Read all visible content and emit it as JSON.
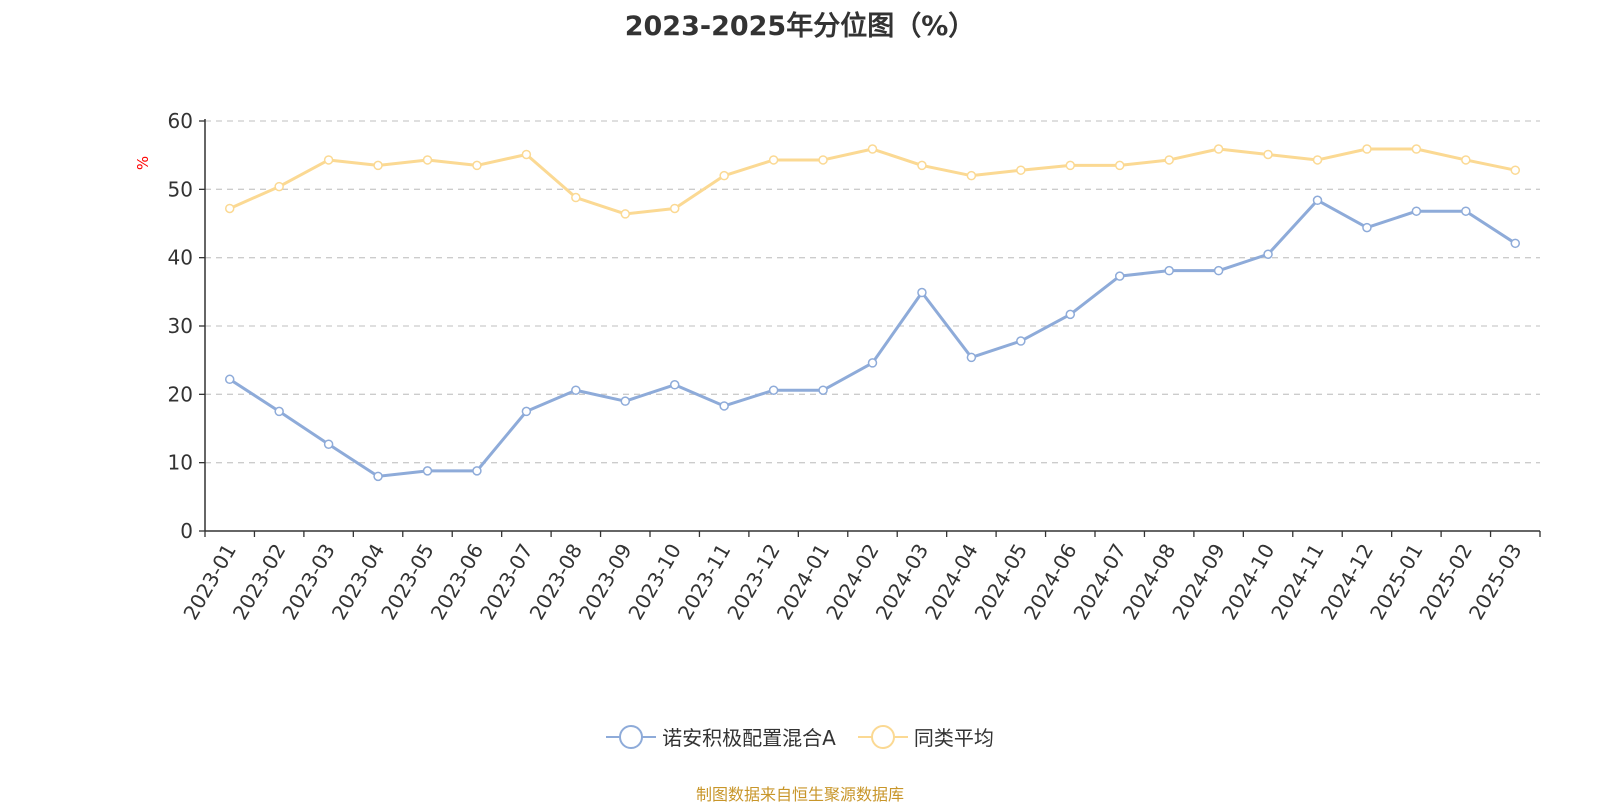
{
  "chart_data": {
    "type": "line",
    "title": "2023-2025年分位图（%）",
    "ylabel": "%",
    "ylim": [
      0,
      60
    ],
    "yticks": [
      0,
      10,
      20,
      30,
      40,
      50,
      60
    ],
    "grid": true,
    "legend_position": "bottom-center",
    "categories": [
      "2023-01",
      "2023-02",
      "2023-03",
      "2023-04",
      "2023-05",
      "2023-06",
      "2023-07",
      "2023-08",
      "2023-09",
      "2023-10",
      "2023-11",
      "2023-12",
      "2024-01",
      "2024-02",
      "2024-03",
      "2024-04",
      "2024-05",
      "2024-06",
      "2024-07",
      "2024-08",
      "2024-09",
      "2024-10",
      "2024-11",
      "2024-12",
      "2025-01",
      "2025-02",
      "2025-03"
    ],
    "series": [
      {
        "name": "诺安积极配置混合A",
        "color": "#8eabd9",
        "values": [
          22.2,
          17.5,
          12.7,
          8.0,
          8.8,
          8.8,
          17.5,
          20.6,
          19.0,
          21.4,
          18.3,
          20.6,
          20.6,
          24.6,
          34.9,
          25.4,
          27.8,
          31.7,
          37.3,
          38.1,
          38.1,
          40.5,
          48.4,
          44.4,
          46.8,
          46.8,
          42.1
        ]
      },
      {
        "name": "同类平均",
        "color": "#fbd993",
        "values": [
          47.2,
          50.4,
          54.3,
          53.5,
          54.3,
          53.5,
          55.1,
          48.8,
          46.4,
          47.2,
          52.0,
          54.3,
          54.3,
          55.9,
          53.5,
          52.0,
          52.8,
          53.5,
          53.5,
          54.3,
          55.9,
          55.1,
          54.3,
          55.9,
          55.9,
          54.3,
          52.8
        ]
      }
    ]
  },
  "source_note": "制图数据来自恒生聚源数据库"
}
